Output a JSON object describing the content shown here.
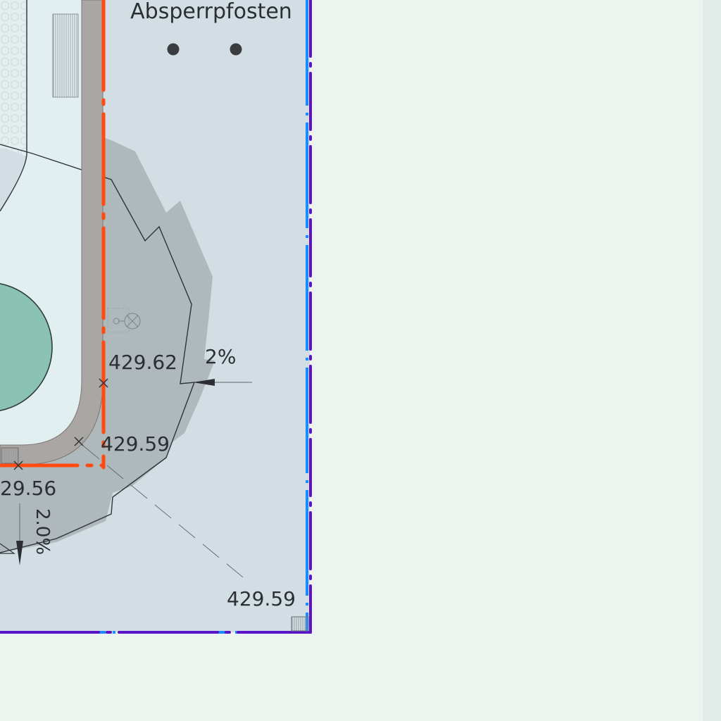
{
  "colors": {
    "background": "#ecf4f0",
    "side_strip": "#e1ebe8",
    "site_fill": "#d2dee4",
    "inner_area": "#e1eff1",
    "pond": "#8bc3b2",
    "path": "#a8aaaa",
    "wall": "#a9a5a3",
    "orange_line": "#ff4a12",
    "blue_line": "#1a8cff",
    "purple_line": "#5a14c8",
    "text": "#2b2f33"
  },
  "labels": {
    "title": "Absperrpfosten",
    "spot_1": "429.62",
    "spot_2": "429.59",
    "spot_3": "29.56",
    "spot_4": "429.59",
    "slope_1": "2%",
    "slope_2": "2.0%"
  },
  "icons": {
    "post": "bollard-dot-icon",
    "lamp": "light-fixture-icon",
    "drain": "drain-grate-icon",
    "marker": "cross-marker-icon"
  }
}
